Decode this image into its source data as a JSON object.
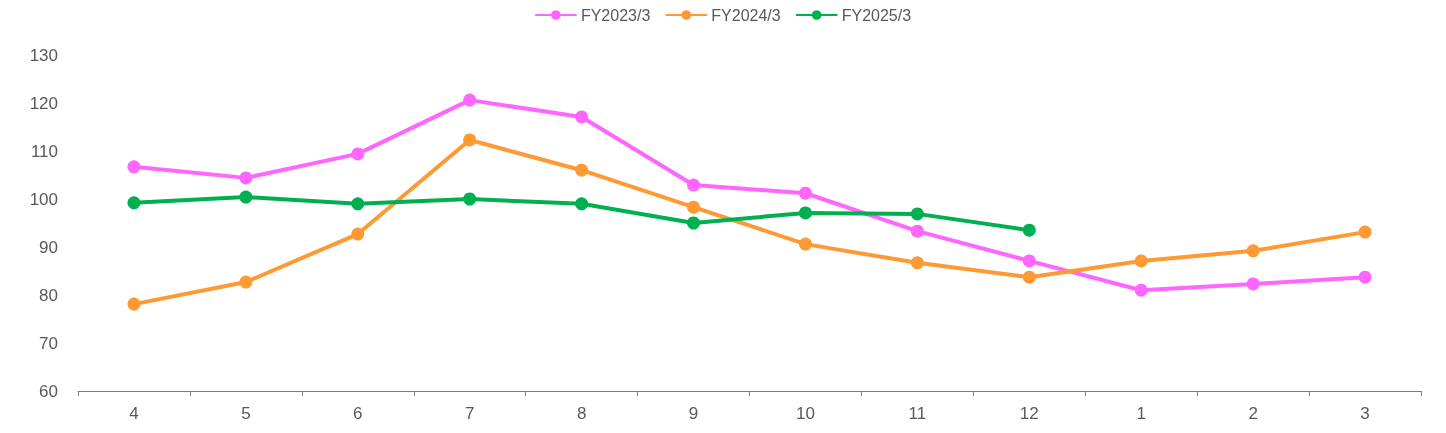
{
  "chart_data": {
    "type": "line",
    "categories": [
      "4",
      "5",
      "6",
      "7",
      "8",
      "9",
      "10",
      "11",
      "12",
      "1",
      "2",
      "3"
    ],
    "series": [
      {
        "name": "FY2023/3",
        "color": "#ff66ff",
        "values": [
          106.7,
          104.4,
          109.4,
          120.6,
          117.1,
          102.9,
          101.2,
          93.3,
          87.1,
          81.0,
          82.3,
          83.7
        ]
      },
      {
        "name": "FY2024/3",
        "color": "#ff9933",
        "values": [
          78.1,
          82.7,
          92.7,
          112.3,
          106.0,
          98.3,
          90.6,
          86.7,
          83.7,
          87.1,
          89.2,
          93.1
        ]
      },
      {
        "name": "FY2025/3",
        "color": "#00b050",
        "values": [
          99.2,
          100.4,
          99.0,
          100.0,
          99.0,
          95.0,
          97.1,
          96.9,
          93.5,
          null,
          null,
          null
        ]
      }
    ],
    "ylim": [
      60,
      130
    ],
    "yticks": [
      60,
      70,
      80,
      90,
      100,
      110,
      120,
      130
    ],
    "grid": false,
    "legend": "top",
    "marker": "circle",
    "line_style": "solid"
  }
}
